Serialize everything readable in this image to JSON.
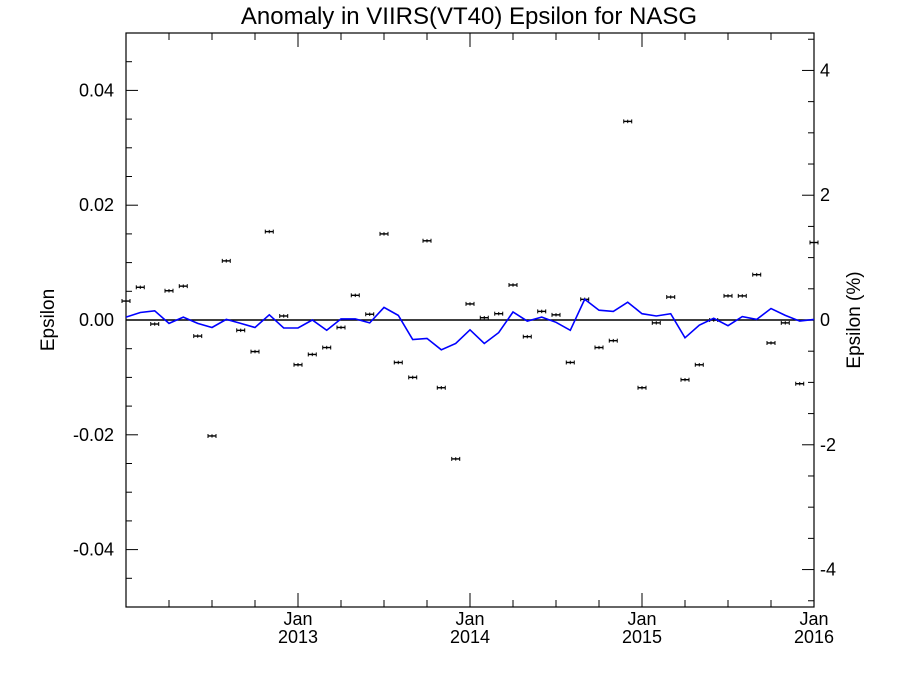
{
  "chart_data": {
    "type": "line",
    "title": "Anomaly in VIIRS(VT40) Epsilon for NASG",
    "ylabel": "Epsilon",
    "ylabel_right": "Epsilon (%)",
    "xlim": [
      2012.0,
      2016.0
    ],
    "ylim": [
      -0.05,
      0.05
    ],
    "ylim_right": [
      -4.6,
      4.6
    ],
    "x_ticks": [
      {
        "x": 2013.0,
        "month": "Jan",
        "year": "2013"
      },
      {
        "x": 2014.0,
        "month": "Jan",
        "year": "2014"
      },
      {
        "x": 2015.0,
        "month": "Jan",
        "year": "2015"
      },
      {
        "x": 2016.0,
        "month": "Jan",
        "year": "2016"
      }
    ],
    "y_ticks_left": [
      "-0.04",
      "-0.02",
      "0.00",
      "0.02",
      "0.04"
    ],
    "y_ticks_left_values": [
      -0.04,
      -0.02,
      0.0,
      0.02,
      0.04
    ],
    "y_ticks_right": [
      "-4",
      "-2",
      "0",
      "2",
      "4"
    ],
    "y_ticks_right_values": [
      -4,
      -2,
      0,
      2,
      4
    ],
    "zero_line": true,
    "series": [
      {
        "kind": "points_with_error_bars",
        "color": "#000000",
        "error": 0.0003,
        "x": [
          2012.0,
          2012.083,
          2012.167,
          2012.25,
          2012.333,
          2012.417,
          2012.5,
          2012.583,
          2012.667,
          2012.75,
          2012.833,
          2012.917,
          2013.0,
          2013.083,
          2013.167,
          2013.25,
          2013.333,
          2013.417,
          2013.5,
          2013.583,
          2013.667,
          2013.75,
          2013.833,
          2013.917,
          2014.0,
          2014.083,
          2014.167,
          2014.25,
          2014.333,
          2014.417,
          2014.5,
          2014.583,
          2014.667,
          2014.75,
          2014.833,
          2014.917,
          2015.0,
          2015.083,
          2015.167,
          2015.25,
          2015.333,
          2015.417,
          2015.5,
          2015.583,
          2015.667,
          2015.75,
          2015.833,
          2015.917,
          2016.0
        ],
        "y": [
          0.0033,
          0.0057,
          -0.0007,
          0.0051,
          0.0059,
          -0.0028,
          -0.0202,
          0.0103,
          -0.0018,
          -0.0055,
          0.0154,
          0.0007,
          -0.0078,
          -0.006,
          -0.0048,
          -0.0013,
          0.0043,
          0.001,
          0.015,
          -0.0074,
          -0.01,
          0.0138,
          -0.0118,
          -0.0242,
          0.0028,
          0.0004,
          0.0011,
          0.0061,
          -0.0029,
          0.0015,
          0.0009,
          -0.0074,
          0.0036,
          -0.0048,
          -0.0036,
          0.0346,
          -0.0118,
          -0.0005,
          0.004,
          -0.0104,
          -0.0078,
          0.0,
          0.0042,
          0.0042,
          0.0079,
          -0.004,
          -0.0005,
          -0.0111,
          0.0135
        ]
      },
      {
        "kind": "line",
        "color": "#0000ff",
        "x": [
          2012.0,
          2012.083,
          2012.167,
          2012.25,
          2012.333,
          2012.417,
          2012.5,
          2012.583,
          2012.667,
          2012.75,
          2012.833,
          2012.917,
          2013.0,
          2013.083,
          2013.167,
          2013.25,
          2013.333,
          2013.417,
          2013.5,
          2013.583,
          2013.667,
          2013.75,
          2013.833,
          2013.917,
          2014.0,
          2014.083,
          2014.167,
          2014.25,
          2014.333,
          2014.417,
          2014.5,
          2014.583,
          2014.667,
          2014.75,
          2014.833,
          2014.917,
          2015.0,
          2015.083,
          2015.167,
          2015.25,
          2015.333,
          2015.417,
          2015.5,
          2015.583,
          2015.667,
          2015.75,
          2015.833,
          2015.917,
          2016.0
        ],
        "y": [
          0.0005,
          0.0013,
          0.0016,
          -0.0006,
          0.0005,
          -0.0006,
          -0.0013,
          0.0001,
          -0.0006,
          -0.0013,
          0.0009,
          -0.0014,
          -0.0014,
          0.0,
          -0.0018,
          0.0002,
          0.0002,
          -0.0005,
          0.0022,
          0.0008,
          -0.0034,
          -0.0032,
          -0.0052,
          -0.0041,
          -0.0017,
          -0.0041,
          -0.0022,
          0.0014,
          -0.0002,
          0.0005,
          -0.0004,
          -0.0018,
          0.0036,
          0.0017,
          0.0015,
          0.0031,
          0.0011,
          0.0007,
          0.0011,
          -0.0031,
          -0.0009,
          0.0003,
          -0.001,
          0.0006,
          0.0001,
          0.002,
          0.0008,
          -0.0002,
          0.0001
        ]
      }
    ]
  }
}
